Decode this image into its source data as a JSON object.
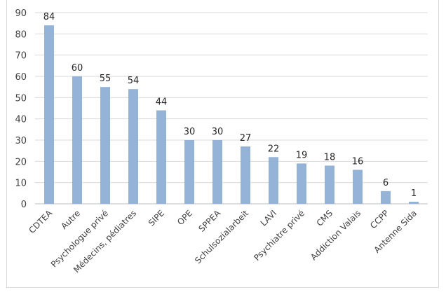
{
  "chart_data": {
    "type": "bar",
    "categories": [
      "CDTEA",
      "Autre",
      "Psychologue privé",
      "Médecins, pédiatres",
      "SIPE",
      "OPE",
      "SPPEA",
      "Schulsozialarbeit",
      "LAVI",
      "Psychiatre privé",
      "CMS",
      "Addiction Valais",
      "CCPP",
      "Antenne Sida"
    ],
    "values": [
      84,
      60,
      55,
      54,
      44,
      30,
      30,
      27,
      22,
      19,
      18,
      16,
      6,
      1
    ],
    "ylim": [
      0,
      90
    ],
    "yticks": [
      0,
      10,
      20,
      30,
      40,
      50,
      60,
      70,
      80,
      90
    ],
    "grid": true,
    "legend": "none",
    "colors": {
      "bar": "#95b3d7",
      "grid": "#d9d9d9",
      "axis": "#bfbfbf"
    }
  }
}
